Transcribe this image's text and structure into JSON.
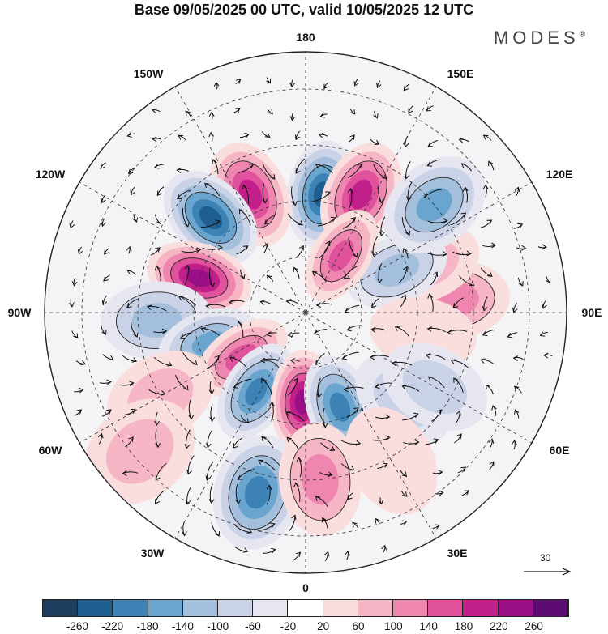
{
  "title": "Base 09/05/2025 00 UTC, valid 10/05/2025 12 UTC",
  "brand": {
    "name": "MODES",
    "mark": "®"
  },
  "longitude_labels": {
    "top": "180",
    "bottom": "0",
    "left": "90W",
    "right": "90E",
    "upper_left_1": "150W",
    "upper_left_2": "120W",
    "lower_left_1": "60W",
    "lower_left_2": "30W",
    "upper_right_1": "150E",
    "upper_right_2": "120E",
    "lower_right_1": "60E",
    "lower_right_2": "30E"
  },
  "reference_vector": {
    "label": "30"
  },
  "colorbar": {
    "colors": [
      "#1d3f5e",
      "#1f5f8f",
      "#3c82b5",
      "#6aa5cf",
      "#a3bfdc",
      "#c9d2e6",
      "#e6e6f0",
      "#ffffff",
      "#fadede",
      "#f6b6c6",
      "#ee86b0",
      "#e0529c",
      "#c11f8a",
      "#9b0f86",
      "#5e0a73"
    ],
    "ticks": [
      "-260",
      "-220",
      "-180",
      "-140",
      "-100",
      "-60",
      "-20",
      "20",
      "60",
      "100",
      "140",
      "180",
      "220",
      "260"
    ]
  },
  "anomaly_centers": [
    {
      "lon": 172,
      "lat": 58,
      "value": -250
    },
    {
      "lon": 155,
      "lat": 55,
      "value": 200
    },
    {
      "lon": 205,
      "lat": 55,
      "value": 200
    },
    {
      "lon": 225,
      "lat": 54,
      "value": -240
    },
    {
      "lon": 252,
      "lat": 60,
      "value": 220
    },
    {
      "lon": 273,
      "lat": 50,
      "value": -110
    },
    {
      "lon": 288,
      "lat": 63,
      "value": -170
    },
    {
      "lon": 305,
      "lat": 69,
      "value": 160
    },
    {
      "lon": 328,
      "lat": 65,
      "value": -190
    },
    {
      "lon": 358,
      "lat": 66,
      "value": 220
    },
    {
      "lon": 20,
      "lat": 63,
      "value": -190
    },
    {
      "lon": 48,
      "lat": 55,
      "value": -80
    },
    {
      "lon": 95,
      "lat": 50,
      "value": 110
    },
    {
      "lon": 112,
      "lat": 55,
      "value": 80
    },
    {
      "lon": 115,
      "lat": 63,
      "value": -130
    },
    {
      "lon": 130,
      "lat": 45,
      "value": -170
    },
    {
      "lon": 148,
      "lat": 72,
      "value": 170
    },
    {
      "lon": 345,
      "lat": 40,
      "value": -190
    },
    {
      "lon": 5,
      "lat": 45,
      "value": 100
    },
    {
      "lon": 300,
      "lat": 45,
      "value": 80
    },
    {
      "lon": 310,
      "lat": 32,
      "value": 90
    },
    {
      "lon": 80,
      "lat": 58,
      "value": 40
    },
    {
      "lon": 60,
      "lat": 50,
      "value": -60
    },
    {
      "lon": 30,
      "lat": 44,
      "value": 40
    }
  ]
}
